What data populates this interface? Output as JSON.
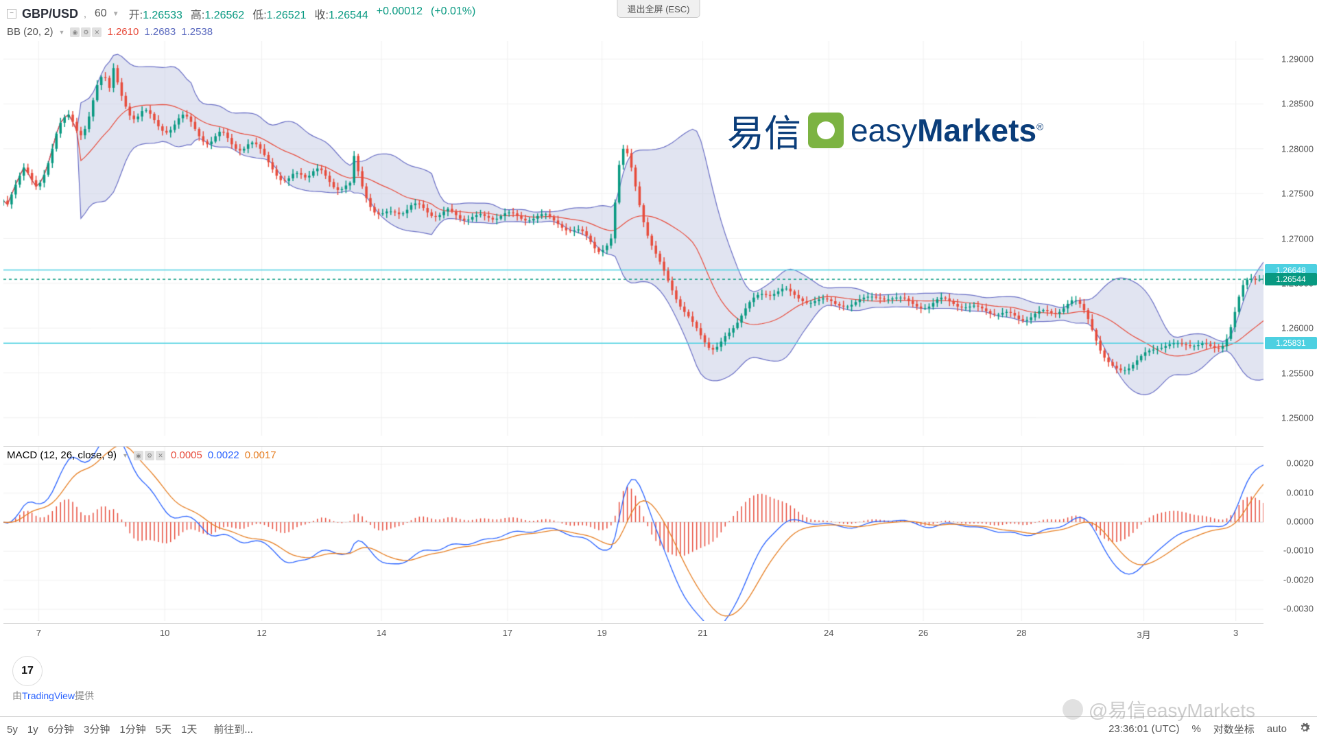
{
  "exit_fullscreen": "退出全屏 (ESC)",
  "symbol": "GBP/USD",
  "timeframe": "60",
  "ohlc": {
    "open_lbl": "开:",
    "open": "1.26533",
    "high_lbl": "高:",
    "high": "1.26562",
    "low_lbl": "低:",
    "low": "1.26521",
    "close_lbl": "收:",
    "close": "1.26544",
    "change": "+0.00012",
    "change_pct": "(+0.01%)"
  },
  "bb": {
    "name": "BB (20, 2)",
    "v1": "1.2610",
    "v2": "1.2683",
    "v3": "1.2538",
    "c1": "#e74c3c",
    "c2": "#5b6abf",
    "c3": "#5b6abf"
  },
  "macd": {
    "name": "MACD (12, 26, close, 9)",
    "v1": "0.0005",
    "v2": "0.0022",
    "v3": "0.0017",
    "c1": "#e74c3c",
    "c2": "#2962ff",
    "c3": "#e67e22"
  },
  "watermark": {
    "cn": "易信",
    "en1": "easy",
    "en2": "Markets"
  },
  "tv": {
    "logo": "17",
    "label_pre": "由",
    "label_link": "TradingView",
    "label_post": "提供"
  },
  "price_chart": {
    "ylim": [
      1.248,
      1.292
    ],
    "yticks": [
      1.29,
      1.285,
      1.28,
      1.275,
      1.27,
      1.265,
      1.26,
      1.255,
      1.25
    ],
    "price_labels": [
      {
        "v": 1.26648,
        "txt": "1.26648",
        "bg": "#4dd0e1"
      },
      {
        "v": 1.26544,
        "txt": "1.26544",
        "bg": "#089981"
      },
      {
        "v": 1.25831,
        "txt": "1.25831",
        "bg": "#4dd0e1"
      }
    ],
    "hlines": [
      1.26648,
      1.25831
    ],
    "hline_dash": 1.26544,
    "background_color": "#ffffff",
    "band_fill": "#c9cde6",
    "band_opacity": 0.55,
    "mid_color": "#e74c3c",
    "edge_color": "#6a6fc5",
    "up_color": "#089981",
    "dn_color": "#e74c3c"
  },
  "macd_chart": {
    "ylim": [
      -0.0034,
      0.0026
    ],
    "yticks": [
      0.002,
      0.001,
      0.0,
      -0.001,
      -0.002,
      -0.003
    ],
    "line_color": "#2962ff",
    "signal_color": "#e67e22",
    "hist_color": "#e74c3c"
  },
  "xaxis": {
    "ticks": [
      {
        "x": 0.028,
        "lbl": "7"
      },
      {
        "x": 0.128,
        "lbl": "10"
      },
      {
        "x": 0.205,
        "lbl": "12"
      },
      {
        "x": 0.3,
        "lbl": "14"
      },
      {
        "x": 0.4,
        "lbl": "17"
      },
      {
        "x": 0.475,
        "lbl": "19"
      },
      {
        "x": 0.555,
        "lbl": "21"
      },
      {
        "x": 0.655,
        "lbl": "24"
      },
      {
        "x": 0.73,
        "lbl": "26"
      },
      {
        "x": 0.808,
        "lbl": "28"
      },
      {
        "x": 0.905,
        "lbl": "3月"
      },
      {
        "x": 0.978,
        "lbl": "3"
      }
    ]
  },
  "toolbar": {
    "timeframes": [
      "5y",
      "1y",
      "6分钟",
      "3分钟",
      "1分钟",
      "5天",
      "1天"
    ],
    "goto": "前往到...",
    "clock": "23:36:01 (UTC)",
    "pct": "%",
    "log": "对数坐标",
    "auto": "auto"
  },
  "weibo": "@易信easyMarkets",
  "series": {
    "n": 310,
    "closes": [
      1.2742,
      1.2738,
      1.2749,
      1.276,
      1.277,
      1.2779,
      1.2773,
      1.2765,
      1.2758,
      1.2762,
      1.2771,
      1.2784,
      1.28,
      1.2817,
      1.2829,
      1.2835,
      1.2838,
      1.283,
      1.282,
      1.2815,
      1.2822,
      1.2836,
      1.2854,
      1.2871,
      1.288,
      1.2879,
      1.2868,
      1.289,
      1.2874,
      1.2859,
      1.2847,
      1.2837,
      1.2833,
      1.2836,
      1.2842,
      1.2843,
      1.2839,
      1.2832,
      1.2825,
      1.282,
      1.2818,
      1.2821,
      1.2827,
      1.2834,
      1.2838,
      1.2836,
      1.283,
      1.2822,
      1.2814,
      1.2808,
      1.2805,
      1.2808,
      1.2814,
      1.2819,
      1.2818,
      1.2812,
      1.2805,
      1.28,
      1.2798,
      1.28,
      1.2805,
      1.2807,
      1.2805,
      1.28,
      1.2793,
      1.2785,
      1.2777,
      1.277,
      1.2765,
      1.2764,
      1.2767,
      1.2772,
      1.2773,
      1.2771,
      1.2768,
      1.277,
      1.2775,
      1.2778,
      1.2776,
      1.277,
      1.2763,
      1.2757,
      1.2754,
      1.2755,
      1.2759,
      1.2762,
      1.2792,
      1.2775,
      1.2758,
      1.2745,
      1.2735,
      1.2729,
      1.2727,
      1.2728,
      1.273,
      1.273,
      1.2729,
      1.2727,
      1.2728,
      1.2732,
      1.2737,
      1.2739,
      1.2738,
      1.2734,
      1.2729,
      1.2725,
      1.2724,
      1.2726,
      1.273,
      1.2733,
      1.273,
      1.2726,
      1.2722,
      1.272,
      1.2721,
      1.2724,
      1.2726,
      1.2727,
      1.2725,
      1.2723,
      1.2721,
      1.2722,
      1.2725,
      1.2728,
      1.2729,
      1.2728,
      1.2725,
      1.2722,
      1.272,
      1.272,
      1.2722,
      1.2725,
      1.2727,
      1.2727,
      1.2724,
      1.272,
      1.2716,
      1.2712,
      1.2709,
      1.2708,
      1.2709,
      1.271,
      1.2708,
      1.2703,
      1.2696,
      1.2689,
      1.2685,
      1.2687,
      1.2692,
      1.27,
      1.274,
      1.2782,
      1.28,
      1.2795,
      1.2779,
      1.2758,
      1.2737,
      1.2718,
      1.2703,
      1.2692,
      1.2683,
      1.2674,
      1.2664,
      1.2653,
      1.2642,
      1.2632,
      1.2624,
      1.2618,
      1.2613,
      1.2607,
      1.26,
      1.2592,
      1.2584,
      1.2578,
      1.2576,
      1.2579,
      1.2585,
      1.2591,
      1.2595,
      1.26,
      1.2606,
      1.2614,
      1.2622,
      1.2629,
      1.2634,
      1.2637,
      1.2638,
      1.2637,
      1.2636,
      1.2638,
      1.2641,
      1.2644,
      1.2644,
      1.2641,
      1.2637,
      1.2633,
      1.263,
      1.2628,
      1.2628,
      1.263,
      1.2632,
      1.2633,
      1.2632,
      1.263,
      1.2627,
      1.2625,
      1.2624,
      1.2624,
      1.2626,
      1.2629,
      1.2632,
      1.2634,
      1.2635,
      1.2635,
      1.2634,
      1.2633,
      1.2632,
      1.2632,
      1.2633,
      1.2634,
      1.2634,
      1.2633,
      1.263,
      1.2627,
      1.2624,
      1.2622,
      1.2622,
      1.2624,
      1.2628,
      1.2632,
      1.2634,
      1.2633,
      1.263,
      1.2627,
      1.2624,
      1.2623,
      1.2623,
      1.2624,
      1.2625,
      1.2624,
      1.2622,
      1.2619,
      1.2616,
      1.2615,
      1.2615,
      1.2617,
      1.2618,
      1.2617,
      1.2614,
      1.261,
      1.2608,
      1.2609,
      1.2612,
      1.2616,
      1.2619,
      1.262,
      1.2619,
      1.2617,
      1.2616,
      1.2618,
      1.2622,
      1.2627,
      1.2631,
      1.2631,
      1.2627,
      1.262,
      1.261,
      1.2598,
      1.2586,
      1.2575,
      1.2567,
      1.2562,
      1.2558,
      1.2555,
      1.2553,
      1.2553,
      1.2555,
      1.2559,
      1.2564,
      1.2569,
      1.2573,
      1.2575,
      1.2576,
      1.2577,
      1.2578,
      1.258,
      1.2582,
      1.2583,
      1.2583,
      1.2582,
      1.2581,
      1.258,
      1.258,
      1.2581,
      1.2583,
      1.2582,
      1.258,
      1.2578,
      1.2577,
      1.258,
      1.2588,
      1.2601,
      1.2618,
      1.2635,
      1.2648,
      1.2654,
      1.2655,
      1.2654,
      1.2654,
      1.2655
    ],
    "candle_amp": 0.00055
  }
}
